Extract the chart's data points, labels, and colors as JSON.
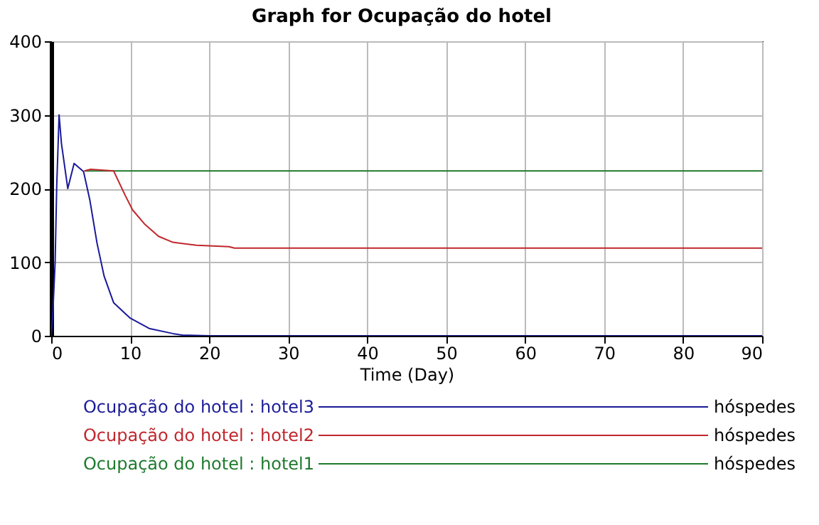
{
  "chart_data": {
    "type": "line",
    "title": "Graph for Ocupação do hotel",
    "xlabel": "Time (Day)",
    "annotations": [
      "hóspedes",
      "hóspedes",
      "hóspedes"
    ],
    "xlim": [
      0,
      90
    ],
    "xticks": [
      0,
      10,
      20,
      30,
      40,
      50,
      60,
      70,
      80,
      90
    ],
    "ylim": [
      0,
      400
    ],
    "yticks": [
      0,
      100,
      200,
      300,
      400
    ],
    "grid": true,
    "legend": "bottom",
    "marker": "none",
    "line_style": "solid",
    "series": [
      {
        "name": "Ocupação do hotel : hotel3",
        "color": "#1a1a9a",
        "x": [
          0,
          0.2,
          0.5,
          0.7,
          1.0,
          1.3,
          2.1,
          2.9,
          4.1,
          4.9,
          5.8,
          6.7,
          7.9,
          10,
          12.4,
          15.4,
          16.6,
          20,
          90
        ],
        "values": [
          0,
          29,
          100,
          203,
          300,
          261,
          200,
          234,
          223,
          184,
          126,
          81,
          45,
          24,
          10,
          3,
          1,
          0,
          0
        ]
      },
      {
        "name": "Ocupação do hotel : hotel2",
        "color": "#c0272d",
        "x": [
          4.2,
          5.0,
          7.9,
          9.4,
          10.3,
          11.8,
          13.6,
          15.4,
          18.4,
          22.5,
          23.2,
          90
        ],
        "values": [
          224,
          226,
          224,
          190,
          171,
          152,
          135,
          127,
          123,
          121,
          119,
          119
        ]
      },
      {
        "name": "Ocupação do hotel : hotel1",
        "color": "#1f7a2e",
        "x": [
          4.2,
          90
        ],
        "values": [
          224,
          224
        ]
      }
    ]
  }
}
